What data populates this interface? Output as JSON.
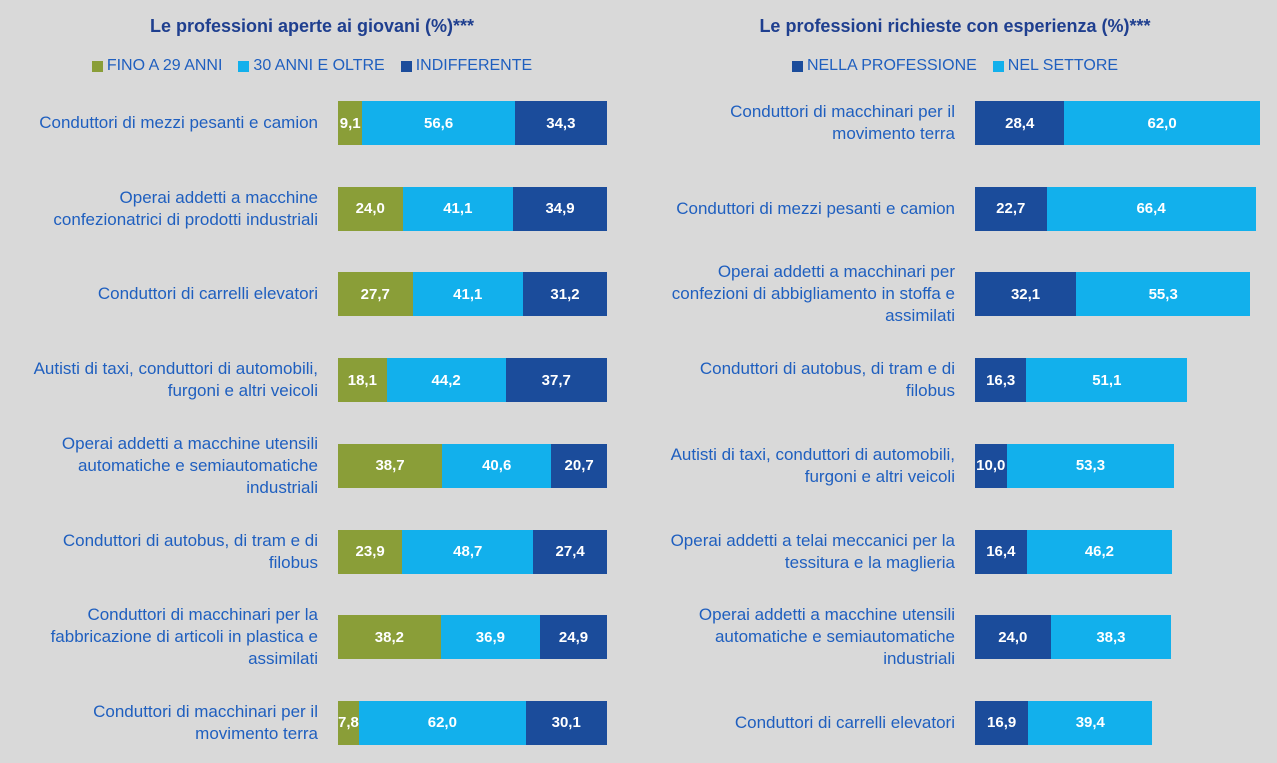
{
  "chart_data": [
    {
      "type": "bar",
      "orientation": "horizontal",
      "stacked": true,
      "title": "Le professioni aperte ai giovani (%)***",
      "categories": [
        "Conduttori di mezzi pesanti e camion",
        "Operai addetti a macchine confezionatrici di prodotti industriali",
        "Conduttori di carrelli elevatori",
        "Autisti di taxi, conduttori di automobili, furgoni e altri veicoli",
        "Operai addetti a macchine utensili automatiche e semiautomatiche industriali",
        "Conduttori di autobus, di tram e di filobus",
        "Conduttori di macchinari per la fabbricazione di articoli in plastica e assimilati",
        "Conduttori di macchinari per il movimento terra"
      ],
      "xlim": [
        0,
        100
      ],
      "series": [
        {
          "name": "FINO A 29 ANNI",
          "color": "#8a9e38",
          "values": [
            9.1,
            24.0,
            27.7,
            18.1,
            38.7,
            23.9,
            38.2,
            7.8
          ],
          "value_labels": [
            "9,1",
            "24,0",
            "27,7",
            "18,1",
            "38,7",
            "23,9",
            "38,2",
            "7,8"
          ]
        },
        {
          "name": "30 ANNI E OLTRE",
          "color": "#12b0ec",
          "values": [
            56.6,
            41.1,
            41.1,
            44.2,
            40.6,
            48.7,
            36.9,
            62.0
          ],
          "value_labels": [
            "56,6",
            "41,1",
            "41,1",
            "44,2",
            "40,6",
            "48,7",
            "36,9",
            "62,0"
          ]
        },
        {
          "name": "INDIFFERENTE",
          "color": "#1b4c9b",
          "values": [
            34.3,
            34.9,
            31.2,
            37.7,
            20.7,
            27.4,
            24.9,
            30.1
          ],
          "value_labels": [
            "34,3",
            "34,9",
            "31,2",
            "37,7",
            "20,7",
            "27,4",
            "24,9",
            "30,1"
          ]
        }
      ]
    },
    {
      "type": "bar",
      "orientation": "horizontal",
      "stacked": true,
      "title": "Le professioni richieste con esperienza (%)***",
      "categories": [
        "Conduttori di macchinari per il movimento terra",
        "Conduttori di mezzi pesanti e camion",
        "Operai addetti a macchinari per confezioni di abbigliamento in stoffa e assimilati",
        "Conduttori di autobus, di tram e di filobus",
        "Autisti di taxi, conduttori di automobili, furgoni e altri veicoli",
        "Operai addetti a telai meccanici per la tessitura e la maglieria",
        "Operai addetti a macchine utensili automatiche e semiautomatiche industriali",
        "Conduttori di carrelli elevatori"
      ],
      "xlim": [
        0,
        100
      ],
      "series": [
        {
          "name": "NELLA PROFESSIONE",
          "color": "#1b4c9b",
          "values": [
            28.4,
            22.7,
            32.1,
            16.3,
            10.0,
            16.4,
            24.0,
            16.9
          ],
          "value_labels": [
            "28,4",
            "22,7",
            "32,1",
            "16,3",
            "10,0",
            "16,4",
            "24,0",
            "16,9"
          ]
        },
        {
          "name": "NEL SETTORE",
          "color": "#12b0ec",
          "values": [
            62.0,
            66.4,
            55.3,
            51.1,
            53.3,
            46.2,
            38.3,
            39.4
          ],
          "value_labels": [
            "62,0",
            "66,4",
            "55,3",
            "51,1",
            "53,3",
            "46,2",
            "38,3",
            "39,4"
          ]
        }
      ]
    }
  ]
}
